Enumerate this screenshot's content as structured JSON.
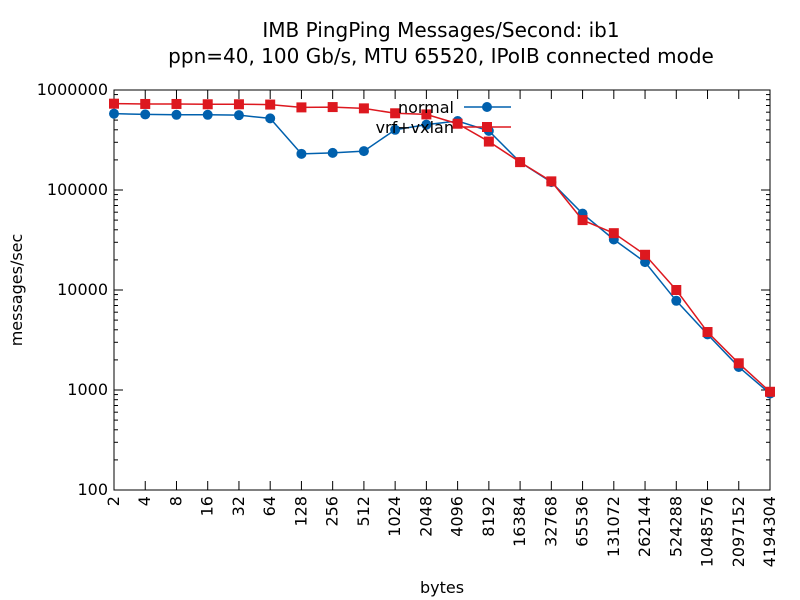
{
  "chart_data": {
    "type": "line",
    "title": "IMB PingPing Messages/Second: ib1",
    "subtitle": "ppn=40, 100 Gb/s, MTU 65520, IPoIB connected mode",
    "xlabel": "bytes",
    "ylabel": "messages/sec",
    "xscale": "log2",
    "yscale": "log10",
    "xlim": [
      2,
      4194304
    ],
    "ylim": [
      100,
      1000000
    ],
    "x": [
      2,
      4,
      8,
      16,
      32,
      64,
      128,
      256,
      512,
      1024,
      2048,
      4096,
      8192,
      16384,
      32768,
      65536,
      131072,
      262144,
      524288,
      1048576,
      2097152,
      4194304
    ],
    "x_tick_labels": [
      "2",
      "4",
      "8",
      "16",
      "32",
      "64",
      "128",
      "256",
      "512",
      "1024",
      "2048",
      "4096",
      "8192",
      "16384",
      "32768",
      "65536",
      "131072",
      "262144",
      "524288",
      "1048576",
      "2097152",
      "4194304"
    ],
    "y_ticks": [
      100,
      1000,
      10000,
      100000,
      1000000
    ],
    "y_tick_labels": [
      "100",
      "1000",
      "10000",
      "100000",
      "1000000"
    ],
    "grid": false,
    "legend_position": "top-center",
    "series": [
      {
        "name": "normal",
        "color": "#0060ad",
        "marker": "circle",
        "values": [
          580000,
          570000,
          565000,
          565000,
          560000,
          520000,
          230000,
          235000,
          245000,
          400000,
          450000,
          490000,
          390000,
          190000,
          120000,
          58000,
          32000,
          19000,
          7800,
          3600,
          1700,
          920
        ]
      },
      {
        "name": "vrf+vxlan",
        "color": "#dd181f",
        "marker": "square",
        "values": [
          730000,
          725000,
          725000,
          720000,
          720000,
          715000,
          670000,
          675000,
          655000,
          585000,
          570000,
          460000,
          305000,
          190000,
          122000,
          50000,
          37000,
          22500,
          10000,
          3800,
          1850,
          960
        ]
      }
    ]
  }
}
